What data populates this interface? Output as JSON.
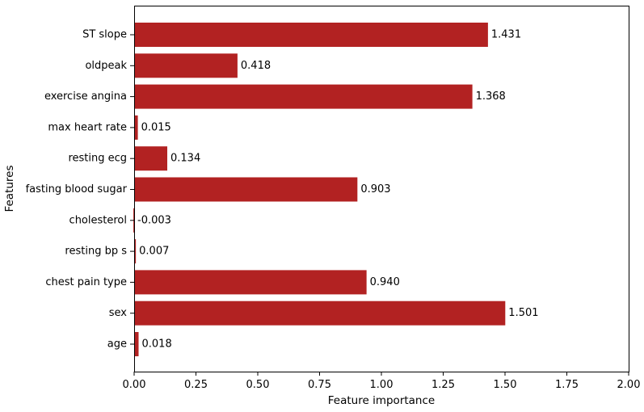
{
  "chart_data": {
    "type": "bar",
    "orientation": "horizontal",
    "title": "",
    "xlabel": "Feature importance",
    "ylabel": "Features",
    "xlim": [
      0,
      2.0
    ],
    "x_ticks": [
      0.0,
      0.25,
      0.5,
      0.75,
      1.0,
      1.25,
      1.5,
      1.75,
      2.0
    ],
    "x_tick_labels": [
      "0.00",
      "0.25",
      "0.50",
      "0.75",
      "1.00",
      "1.25",
      "1.50",
      "1.75",
      "2.00"
    ],
    "grid": false,
    "bar_color": "#b22222",
    "categories": [
      "age",
      "sex",
      "chest pain type",
      "resting bp s",
      "cholesterol",
      "fasting blood sugar",
      "resting ecg",
      "max heart rate",
      "exercise angina",
      "oldpeak",
      "ST slope"
    ],
    "values": [
      0.018,
      1.501,
      0.94,
      0.007,
      -0.003,
      0.903,
      0.134,
      0.015,
      1.368,
      0.418,
      1.431
    ],
    "value_labels": [
      "0.018",
      "1.501",
      "0.940",
      "0.007",
      "-0.003",
      "0.903",
      "0.134",
      "0.015",
      "1.368",
      "0.418",
      "1.431"
    ]
  }
}
